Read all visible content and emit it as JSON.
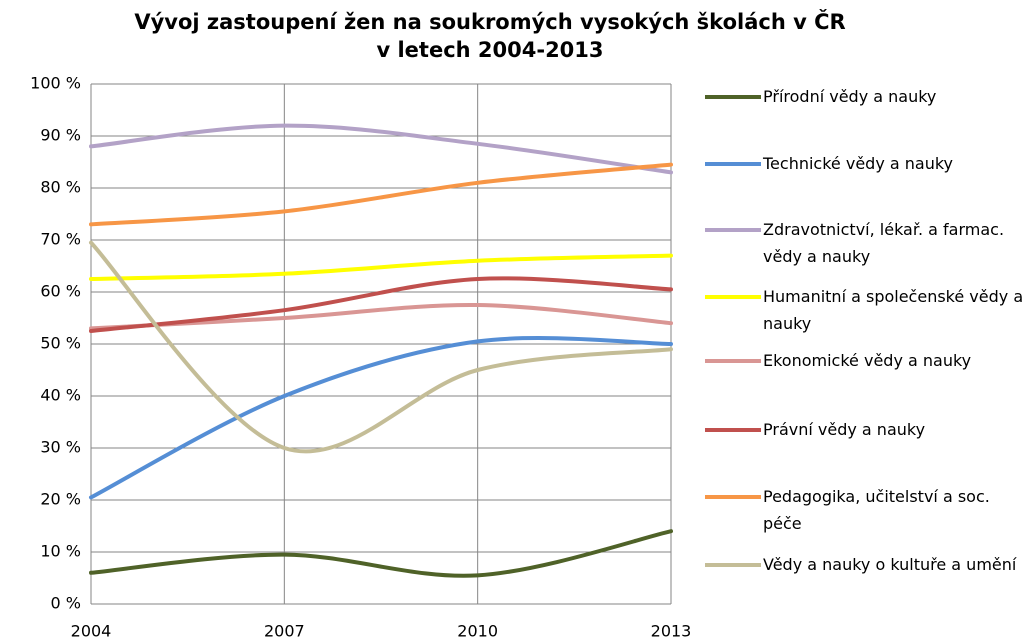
{
  "chart_data": {
    "type": "line",
    "title": [
      "Vývoj zastoupení žen na soukromých vysokých školách v ČR",
      "v letech 2004-2013"
    ],
    "x": [
      2004,
      2007,
      2010,
      2013
    ],
    "xlim": [
      2004,
      2013
    ],
    "xticks": [
      2004,
      2007,
      2010,
      2013
    ],
    "ylim": [
      0,
      100
    ],
    "yticks": [
      {
        "value": 0,
        "label": "0 %"
      },
      {
        "value": 10,
        "label": "10 %"
      },
      {
        "value": 20,
        "label": "20 %"
      },
      {
        "value": 30,
        "label": "30 %"
      },
      {
        "value": 40,
        "label": "40 %"
      },
      {
        "value": 50,
        "label": "50 %"
      },
      {
        "value": 60,
        "label": "60 %"
      },
      {
        "value": 70,
        "label": "70 %"
      },
      {
        "value": 80,
        "label": "80 %"
      },
      {
        "value": 90,
        "label": "90 %"
      },
      {
        "value": 100,
        "label": "100 %"
      }
    ],
    "grid": true,
    "smooth": true,
    "legend": "right",
    "series": [
      {
        "name": "Přírodní vědy a nauky",
        "color": "#4f6228",
        "values": [
          6,
          9.5,
          5.5,
          14
        ]
      },
      {
        "name": "Technické vědy a nauky",
        "color": "#558ed5",
        "values": [
          20.5,
          40,
          50.5,
          50
        ]
      },
      {
        "name": "Zdravotnictví, lékař. a farmac. vědy a nauky",
        "color": "#b3a2c7",
        "values": [
          88,
          92,
          88.5,
          83
        ]
      },
      {
        "name": "Humanitní a společenské vědy a nauky",
        "color": "#ffff00",
        "values": [
          62.5,
          63.5,
          66,
          67
        ]
      },
      {
        "name": "Ekonomické vědy a nauky",
        "color": "#d99694",
        "values": [
          53,
          55,
          57.5,
          54
        ]
      },
      {
        "name": "Právní vědy a nauky",
        "color": "#c0504d",
        "values": [
          52.5,
          56.5,
          62.5,
          60.5
        ]
      },
      {
        "name": "Pedagogika, učitelství a soc. péče",
        "color": "#f79646",
        "values": [
          73,
          75.5,
          81,
          84.5
        ]
      },
      {
        "name": "Vědy a nauky o kultuře a umění",
        "color": "#c4bd97",
        "values": [
          69.5,
          30,
          45,
          49
        ]
      }
    ]
  }
}
